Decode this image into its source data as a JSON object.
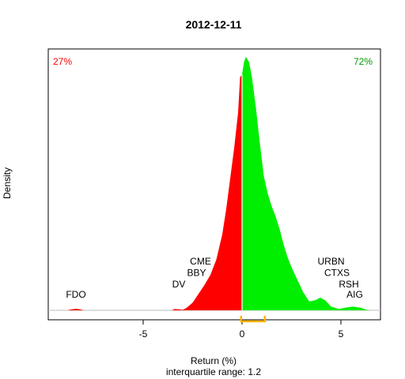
{
  "chart_data": {
    "type": "area",
    "title": "2012-12-11",
    "xlabel": "Return (%)",
    "ylabel": "Density",
    "subtitle": "interquartile range: 1.2",
    "xlim": [
      -9.8,
      7.0
    ],
    "ylim": [
      0,
      1.0
    ],
    "x_ticks": [
      -5,
      0,
      5
    ],
    "negative_share_label": "27%",
    "positive_share_label": "72%",
    "interquartile_range": [
      -0.05,
      1.15
    ],
    "colors": {
      "negative": "#ff0000",
      "positive": "#00ee00",
      "negative_text": "#ff0000",
      "positive_text": "#009900",
      "iqr": "#ffb300",
      "baseline": "#bebebe",
      "median_line": "#ffffff"
    },
    "density": [
      [
        -8.85,
        0
      ],
      [
        -8.6,
        0.004
      ],
      [
        -8.4,
        0.006
      ],
      [
        -8.2,
        0.004
      ],
      [
        -8.0,
        0
      ],
      [
        -3.55,
        0
      ],
      [
        -3.4,
        0.005
      ],
      [
        -3.2,
        0.004
      ],
      [
        -3.0,
        0.002
      ],
      [
        -2.8,
        0.01
      ],
      [
        -2.5,
        0.03
      ],
      [
        -2.2,
        0.065
      ],
      [
        -1.9,
        0.1
      ],
      [
        -1.6,
        0.14
      ],
      [
        -1.3,
        0.2
      ],
      [
        -1.0,
        0.3
      ],
      [
        -0.8,
        0.4
      ],
      [
        -0.6,
        0.52
      ],
      [
        -0.4,
        0.64
      ],
      [
        -0.2,
        0.78
      ],
      [
        -0.1,
        0.92
      ],
      [
        0.0,
        0.93
      ],
      [
        0.1,
        0.98
      ],
      [
        0.2,
        1.0
      ],
      [
        0.35,
        0.98
      ],
      [
        0.5,
        0.92
      ],
      [
        0.7,
        0.8
      ],
      [
        0.9,
        0.66
      ],
      [
        1.1,
        0.53
      ],
      [
        1.3,
        0.46
      ],
      [
        1.5,
        0.41
      ],
      [
        1.7,
        0.37
      ],
      [
        1.9,
        0.32
      ],
      [
        2.1,
        0.26
      ],
      [
        2.3,
        0.21
      ],
      [
        2.5,
        0.17
      ],
      [
        2.8,
        0.12
      ],
      [
        3.1,
        0.07
      ],
      [
        3.4,
        0.035
      ],
      [
        3.7,
        0.04
      ],
      [
        3.95,
        0.05
      ],
      [
        4.2,
        0.04
      ],
      [
        4.5,
        0.015
      ],
      [
        4.9,
        0.005
      ],
      [
        5.2,
        0.01
      ],
      [
        5.6,
        0.015
      ],
      [
        6.0,
        0.01
      ],
      [
        6.3,
        0.002
      ],
      [
        6.5,
        0
      ]
    ],
    "annotations": [
      {
        "label": "FDO",
        "x": -8.4,
        "y": 0.05
      },
      {
        "label": "DV",
        "x": -3.2,
        "y": 0.09
      },
      {
        "label": "BBY",
        "x": -2.3,
        "y": 0.135
      },
      {
        "label": "CME",
        "x": -2.1,
        "y": 0.18
      },
      {
        "label": "URBN",
        "x": 4.5,
        "y": 0.18
      },
      {
        "label": "CTXS",
        "x": 4.8,
        "y": 0.135
      },
      {
        "label": "RSH",
        "x": 5.4,
        "y": 0.09
      },
      {
        "label": "AIG",
        "x": 5.7,
        "y": 0.05
      }
    ]
  }
}
